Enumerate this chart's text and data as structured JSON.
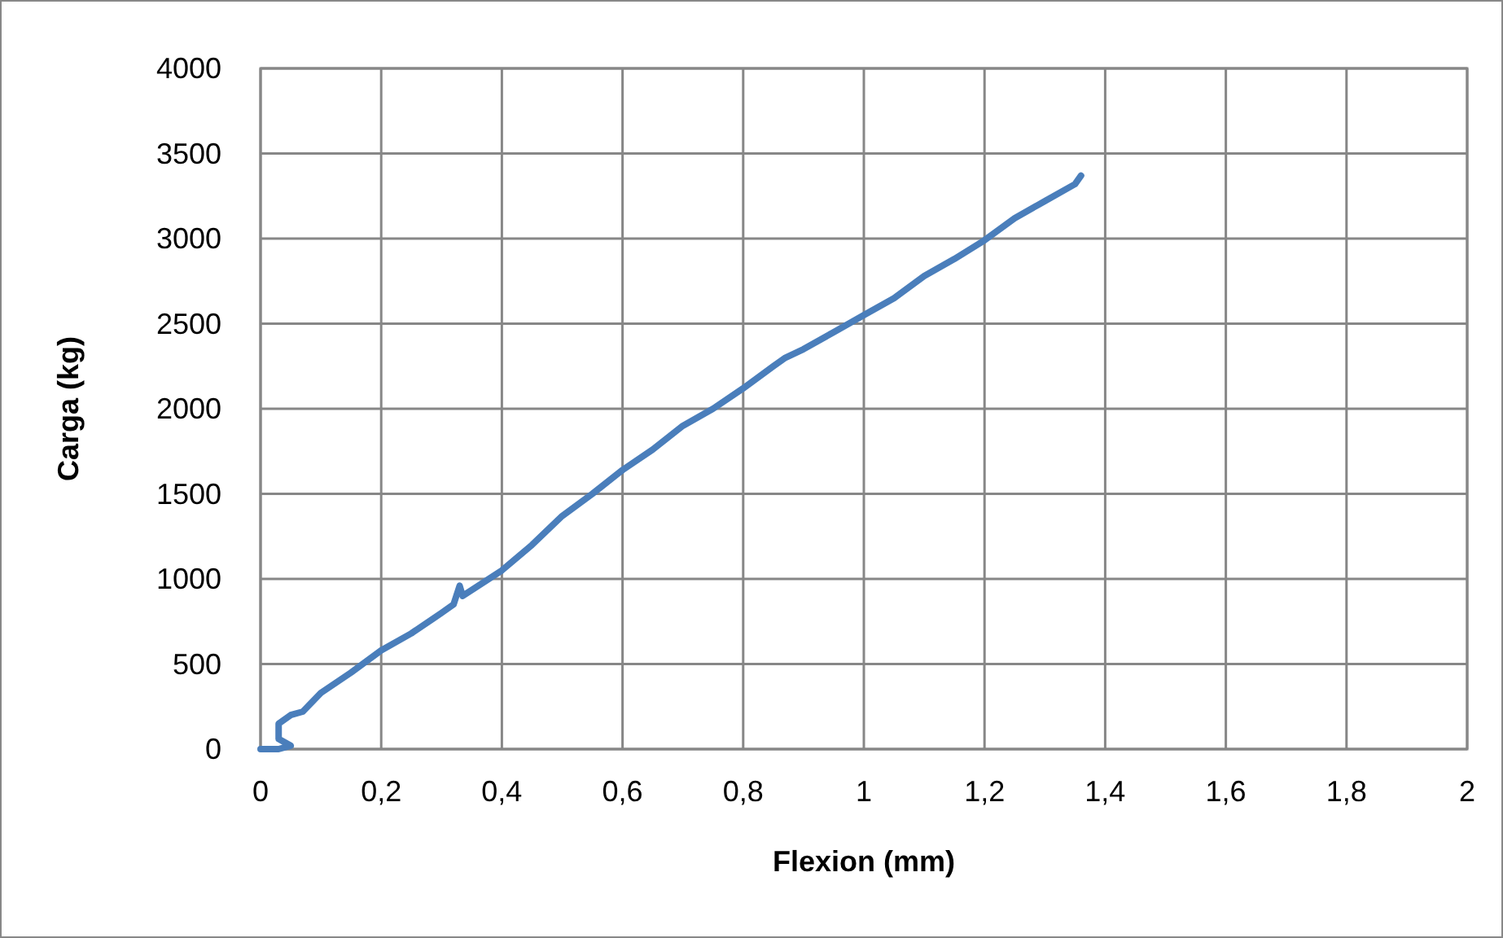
{
  "chart_data": {
    "type": "line",
    "xlabel": "Flexion (mm)",
    "ylabel": "Carga (kg)",
    "xlim": [
      0,
      2
    ],
    "ylim": [
      0,
      4000
    ],
    "xticks": [
      {
        "value": 0,
        "label": "0"
      },
      {
        "value": 0.2,
        "label": "0,2"
      },
      {
        "value": 0.4,
        "label": "0,4"
      },
      {
        "value": 0.6,
        "label": "0,6"
      },
      {
        "value": 0.8,
        "label": "0,8"
      },
      {
        "value": 1,
        "label": "1"
      },
      {
        "value": 1.2,
        "label": "1,2"
      },
      {
        "value": 1.4,
        "label": "1,4"
      },
      {
        "value": 1.6,
        "label": "1,6"
      },
      {
        "value": 1.8,
        "label": "1,8"
      },
      {
        "value": 2,
        "label": "2"
      }
    ],
    "yticks": [
      0,
      500,
      1000,
      1500,
      2000,
      2500,
      3000,
      3500,
      4000
    ],
    "grid": true,
    "marker": "none",
    "line_style": "solid",
    "series": [
      {
        "color": "#4a7ebb",
        "x": [
          0,
          0.03,
          0.05,
          0.03,
          0.03,
          0.05,
          0.07,
          0.1,
          0.15,
          0.2,
          0.25,
          0.3,
          0.32,
          0.33,
          0.335,
          0.4,
          0.45,
          0.5,
          0.55,
          0.6,
          0.65,
          0.7,
          0.75,
          0.8,
          0.85,
          0.87,
          0.9,
          0.95,
          1.0,
          1.05,
          1.1,
          1.15,
          1.2,
          1.25,
          1.3,
          1.35,
          1.36
        ],
        "values": [
          0,
          0,
          20,
          60,
          150,
          200,
          220,
          330,
          450,
          580,
          680,
          800,
          850,
          960,
          900,
          1050,
          1200,
          1370,
          1500,
          1640,
          1760,
          1900,
          2000,
          2120,
          2250,
          2300,
          2350,
          2450,
          2550,
          2650,
          2780,
          2880,
          2990,
          3120,
          3220,
          3320,
          3370
        ]
      }
    ]
  }
}
